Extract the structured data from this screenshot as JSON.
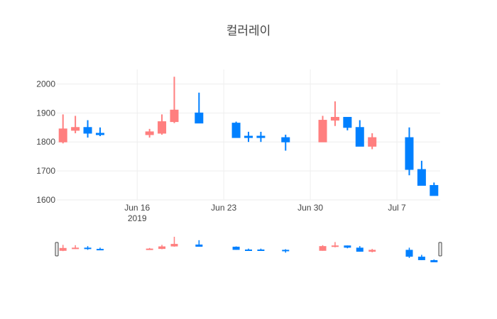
{
  "title": "컬러레이",
  "chart_data": {
    "type": "candlestick",
    "title": "컬러레이",
    "xlabel": "",
    "ylabel": "",
    "ylim": [
      1600,
      2050
    ],
    "y_ticks": [
      1600,
      1700,
      1800,
      1900,
      2000
    ],
    "x_range": [
      "2019-06-10",
      "2019-07-10"
    ],
    "x_ticks": [
      {
        "date": "2019-06-16",
        "label": "Jun 16",
        "sublabel": "2019"
      },
      {
        "date": "2019-06-23",
        "label": "Jun 23",
        "sublabel": ""
      },
      {
        "date": "2019-06-30",
        "label": "Jun 30",
        "sublabel": ""
      },
      {
        "date": "2019-07-07",
        "label": "Jul 7",
        "sublabel": ""
      }
    ],
    "grid": true,
    "rangeslider": true,
    "colors": {
      "increasing": "#ff7f7f",
      "decreasing": "#0080ff"
    },
    "series": [
      {
        "date": "2019-06-10",
        "open": 1800,
        "high": 1895,
        "low": 1795,
        "close": 1845
      },
      {
        "date": "2019-06-11",
        "open": 1840,
        "high": 1890,
        "low": 1830,
        "close": 1850
      },
      {
        "date": "2019-06-12",
        "open": 1850,
        "high": 1875,
        "low": 1815,
        "close": 1830
      },
      {
        "date": "2019-06-13",
        "open": 1830,
        "high": 1850,
        "low": 1820,
        "close": 1825
      },
      {
        "date": "2019-06-17",
        "open": 1825,
        "high": 1845,
        "low": 1815,
        "close": 1835
      },
      {
        "date": "2019-06-18",
        "open": 1830,
        "high": 1895,
        "low": 1825,
        "close": 1870
      },
      {
        "date": "2019-06-19",
        "open": 1870,
        "high": 2025,
        "low": 1865,
        "close": 1910
      },
      {
        "date": "2019-06-21",
        "open": 1900,
        "high": 1970,
        "low": 1865,
        "close": 1865
      },
      {
        "date": "2019-06-24",
        "open": 1865,
        "high": 1870,
        "low": 1815,
        "close": 1815
      },
      {
        "date": "2019-06-25",
        "open": 1820,
        "high": 1835,
        "low": 1800,
        "close": 1815
      },
      {
        "date": "2019-06-26",
        "open": 1820,
        "high": 1835,
        "low": 1800,
        "close": 1815
      },
      {
        "date": "2019-06-28",
        "open": 1815,
        "high": 1825,
        "low": 1770,
        "close": 1800
      },
      {
        "date": "2019-07-01",
        "open": 1800,
        "high": 1890,
        "low": 1800,
        "close": 1875
      },
      {
        "date": "2019-07-02",
        "open": 1875,
        "high": 1940,
        "low": 1855,
        "close": 1885
      },
      {
        "date": "2019-07-03",
        "open": 1885,
        "high": 1885,
        "low": 1840,
        "close": 1850
      },
      {
        "date": "2019-07-04",
        "open": 1850,
        "high": 1875,
        "low": 1785,
        "close": 1785
      },
      {
        "date": "2019-07-05",
        "open": 1785,
        "high": 1830,
        "low": 1775,
        "close": 1815
      },
      {
        "date": "2019-07-08",
        "open": 1815,
        "high": 1850,
        "low": 1685,
        "close": 1705
      },
      {
        "date": "2019-07-09",
        "open": 1705,
        "high": 1735,
        "low": 1650,
        "close": 1650
      },
      {
        "date": "2019-07-10",
        "open": 1650,
        "high": 1660,
        "low": 1615,
        "close": 1615
      }
    ]
  }
}
